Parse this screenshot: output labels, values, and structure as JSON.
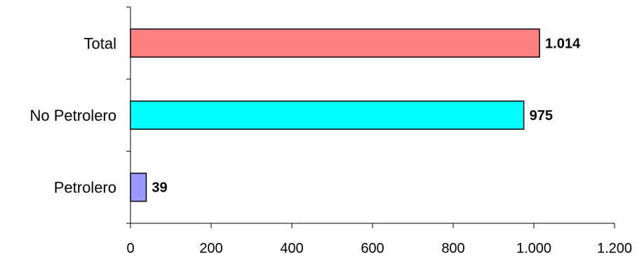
{
  "chart_data": {
    "type": "bar",
    "orientation": "horizontal",
    "categories": [
      "Total",
      "No Petrolero",
      "Petrolero"
    ],
    "values": [
      1014,
      975,
      39
    ],
    "value_labels": [
      "1.014",
      "975",
      "39"
    ],
    "colors": [
      "#ff8080",
      "#00ffff",
      "#9999ff"
    ],
    "xlim": [
      0,
      1200
    ],
    "xticks": [
      0,
      200,
      400,
      600,
      800,
      1000,
      1200
    ],
    "xtick_labels": [
      "0",
      "200",
      "400",
      "600",
      "800",
      "1.000",
      "1.200"
    ],
    "grid": false,
    "legend": "none"
  }
}
